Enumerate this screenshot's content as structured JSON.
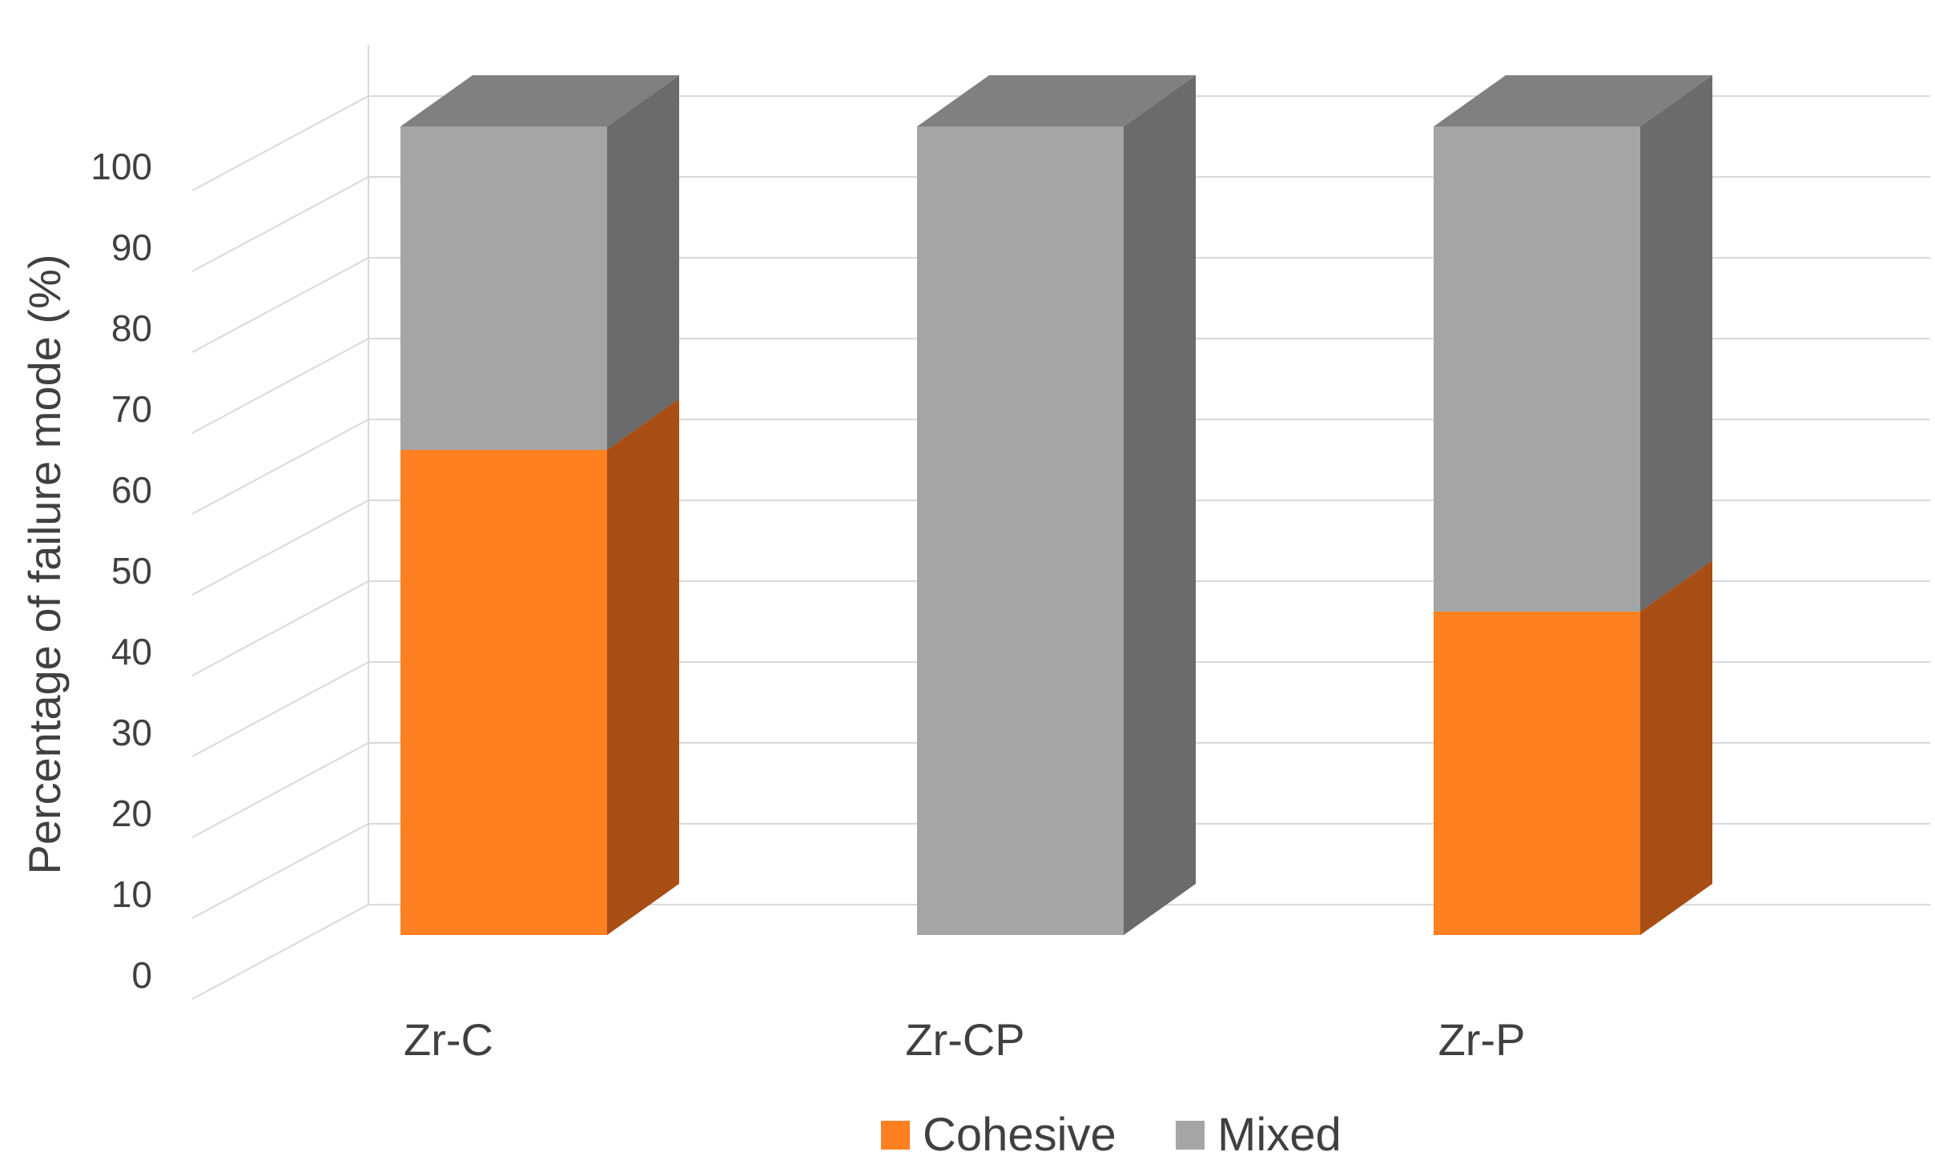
{
  "chart_data": {
    "type": "bar",
    "stacked": true,
    "style": "3d-column",
    "categories": [
      "Zr-C",
      "Zr-CP",
      "Zr-P"
    ],
    "series": [
      {
        "name": "Cohesive",
        "values": [
          60,
          0,
          40
        ],
        "color": "#FF8021",
        "side_color": "#A84E14"
      },
      {
        "name": "Mixed",
        "values": [
          40,
          100,
          60
        ],
        "color": "#A5A5A5",
        "side_color": "#6B6B6B"
      }
    ],
    "title": "",
    "xlabel": "",
    "ylabel": "Percentage of failure mode (%)",
    "ylim": [
      0,
      100
    ],
    "yticks": [
      "0",
      "10",
      "20",
      "30",
      "40",
      "50",
      "60",
      "70",
      "80",
      "90",
      "100"
    ],
    "grid": true,
    "legend_position": "bottom",
    "colors": {
      "gridline": "#D9D9D9",
      "top_face": "#808080",
      "text": "#404040"
    }
  }
}
